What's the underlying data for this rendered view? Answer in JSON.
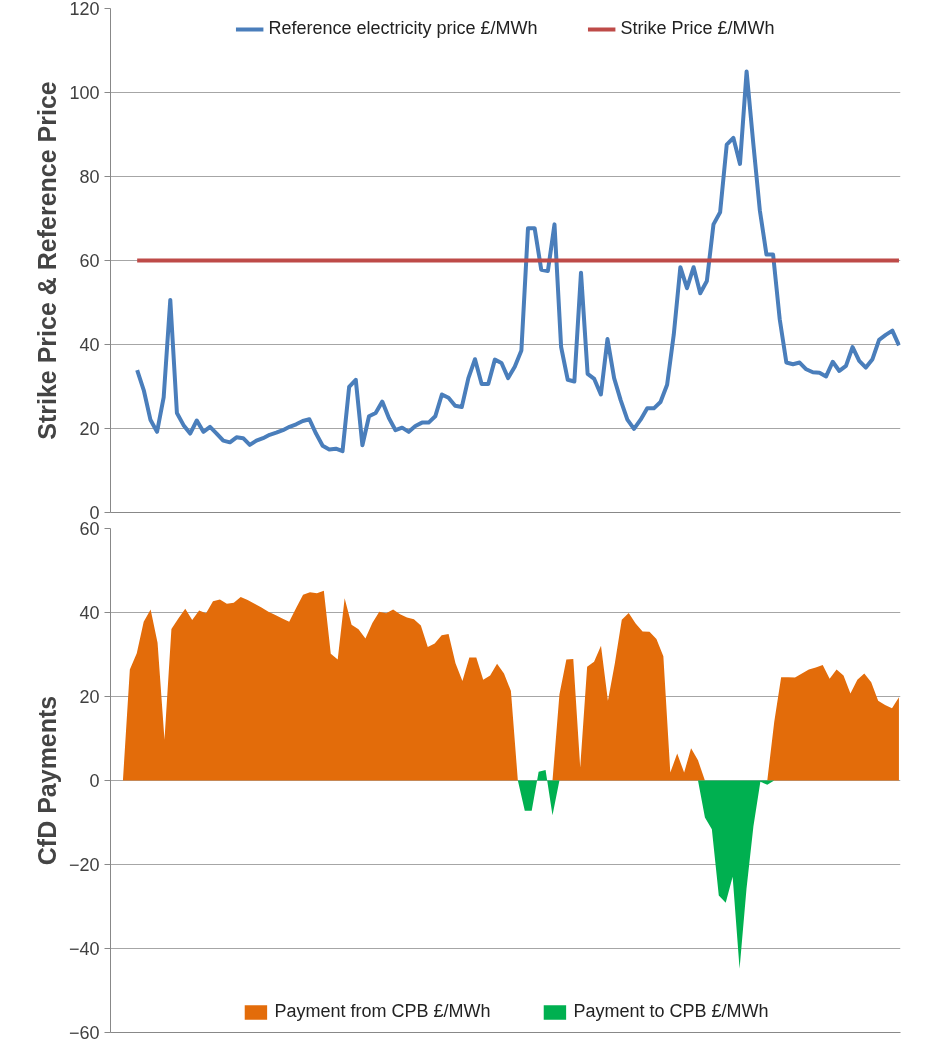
{
  "chart_data": [
    {
      "type": "line",
      "ylabel": "Strike Price & Reference Price",
      "ylim": [
        0,
        120
      ],
      "yticks": [
        0,
        20,
        40,
        60,
        80,
        100,
        120
      ],
      "grid": "y",
      "legend": "top",
      "tick_labels": "y",
      "marker": "none",
      "line_style": "solid",
      "categories": [
        null,
        null,
        null,
        null,
        null,
        null,
        null,
        null,
        null,
        null,
        null,
        null,
        null,
        null,
        null,
        null,
        null,
        null,
        null,
        null,
        null,
        null,
        null,
        null,
        null,
        null,
        null,
        null,
        null,
        null,
        null,
        null,
        null,
        null,
        null,
        null,
        null,
        null,
        null,
        null,
        null,
        null,
        null,
        null,
        null,
        null,
        null,
        null,
        null,
        null,
        null,
        null,
        null,
        null,
        null,
        null,
        null,
        null,
        null,
        null,
        null,
        null,
        null,
        null,
        null,
        null,
        null,
        null,
        null,
        null,
        null,
        null,
        null,
        null,
        null,
        null,
        null,
        null,
        null,
        null,
        null,
        null,
        null,
        null,
        null,
        null,
        null,
        null,
        null,
        null,
        null,
        null,
        null,
        null,
        null,
        null,
        null,
        null,
        null,
        null,
        null,
        null,
        null,
        null,
        null,
        null,
        null,
        null,
        null,
        null,
        null,
        null,
        null,
        null,
        null,
        null
      ],
      "series": [
        {
          "name": "Reference electricity price £/MWh",
          "color": "#4a7ebb",
          "values": [
            33.9,
            29.1,
            22.1,
            19.2,
            27.4,
            50.6,
            23.7,
            20.8,
            18.8,
            21.9,
            19.2,
            20.4,
            18.8,
            17.1,
            16.7,
            17.9,
            17.7,
            16.1,
            17.1,
            17.7,
            18.5,
            19.0,
            19.6,
            20.4,
            21.0,
            21.8,
            22.2,
            18.8,
            15.9,
            15.0,
            15.2,
            14.6,
            29.9,
            31.6,
            16.0,
            22.9,
            23.7,
            26.4,
            22.5,
            19.6,
            20.2,
            19.2,
            20.6,
            21.4,
            21.4,
            22.9,
            28.1,
            27.3,
            25.4,
            25.1,
            32.0,
            36.5,
            30.6,
            30.6,
            36.4,
            35.6,
            32.0,
            34.7,
            38.6,
            67.7,
            67.7,
            57.8,
            57.5,
            68.6,
            39.4,
            31.6,
            31.2,
            57.1,
            33.0,
            31.8,
            28.1,
            41.3,
            32.0,
            26.7,
            22.1,
            19.9,
            22.1,
            24.8,
            24.8,
            26.3,
            30.4,
            42.3,
            58.4,
            53.4,
            58.4,
            52.2,
            55.1,
            68.6,
            71.5,
            87.6,
            89.2,
            83.0,
            105,
            88.0,
            71.9,
            61.4,
            61.4,
            46.0,
            35.7,
            35.3,
            35.7,
            34.1,
            33.4,
            33.3,
            32.4,
            35.9,
            33.7,
            34.9,
            39.4,
            36.1,
            34.5,
            36.5,
            41.1,
            42.3,
            43.3,
            39.8
          ]
        },
        {
          "name": "Strike Price £/MWh",
          "color": "#be4b48",
          "values": [
            60,
            60,
            60,
            60,
            60,
            60,
            60,
            60,
            60,
            60,
            60,
            60,
            60,
            60,
            60,
            60,
            60,
            60,
            60,
            60,
            60,
            60,
            60,
            60,
            60,
            60,
            60,
            60,
            60,
            60,
            60,
            60,
            60,
            60,
            60,
            60,
            60,
            60,
            60,
            60,
            60,
            60,
            60,
            60,
            60,
            60,
            60,
            60,
            60,
            60,
            60,
            60,
            60,
            60,
            60,
            60,
            60,
            60,
            60,
            60,
            60,
            60,
            60,
            60,
            60,
            60,
            60,
            60,
            60,
            60,
            60,
            60,
            60,
            60,
            60,
            60,
            60,
            60,
            60,
            60,
            60,
            60,
            60,
            60,
            60,
            60,
            60,
            60,
            60,
            60,
            60,
            60,
            60,
            60,
            60,
            60,
            60,
            60,
            60,
            60,
            60,
            60,
            60,
            60,
            60,
            60,
            60,
            60,
            60,
            60,
            60,
            60,
            60,
            60,
            60,
            60
          ]
        }
      ]
    },
    {
      "type": "area",
      "ylabel": "CfD Payments",
      "ylim": [
        -60,
        60
      ],
      "yticks": [
        -60,
        -40,
        -20,
        0,
        20,
        40,
        60
      ],
      "grid": "y",
      "legend": "bottom",
      "tick_labels": "y",
      "categories": [
        null,
        null,
        null,
        null,
        null,
        null,
        null,
        null,
        null,
        null,
        null,
        null,
        null,
        null,
        null,
        null,
        null,
        null,
        null,
        null,
        null,
        null,
        null,
        null,
        null,
        null,
        null,
        null,
        null,
        null,
        null,
        null,
        null,
        null,
        null,
        null,
        null,
        null,
        null,
        null,
        null,
        null,
        null,
        null,
        null,
        null,
        null,
        null,
        null,
        null,
        null,
        null,
        null,
        null,
        null,
        null,
        null,
        null,
        null,
        null,
        null,
        null,
        null,
        null,
        null,
        null,
        null,
        null,
        null,
        null,
        null,
        null,
        null,
        null,
        null,
        null,
        null,
        null,
        null,
        null,
        null,
        null,
        null,
        null,
        null,
        null,
        null,
        null,
        null,
        null,
        null,
        null,
        null,
        null,
        null,
        null,
        null,
        null,
        null,
        null,
        null,
        null,
        null,
        null,
        null,
        null,
        null,
        null,
        null,
        null,
        null,
        null,
        null
      ],
      "series": [
        {
          "name": "Payment from CPB £/MWh",
          "color": "#e36c0a",
          "values": [
            0,
            26.4,
            30.3,
            37.8,
            40.7,
            32.8,
            9.7,
            36.1,
            38.6,
            40.9,
            38.2,
            40.5,
            39.8,
            42.7,
            43.1,
            42.1,
            42.3,
            43.7,
            43.0,
            42.1,
            41.2,
            40.2,
            39.4,
            38.6,
            37.8,
            41.1,
            44.2,
            44.8,
            44.6,
            45.2,
            30.2,
            28.8,
            43.4,
            37.1,
            36.0,
            33.8,
            37.5,
            40.2,
            39.8,
            40.7,
            39.6,
            38.8,
            38.4,
            36.9,
            31.8,
            32.6,
            34.6,
            34.9,
            27.9,
            23.7,
            29.3,
            29.3,
            24.0,
            25.0,
            27.8,
            25.5,
            21.3,
            0,
            0,
            0,
            0,
            0,
            0,
            20.5,
            28.8,
            28.9,
            3.1,
            27.1,
            28.3,
            32.1,
            19.0,
            27.9,
            38.3,
            39.9,
            37.4,
            35.5,
            35.4,
            33.7,
            29.6,
            1.9,
            6.4,
            1.9,
            7.7,
            4.8,
            0,
            0,
            0,
            0,
            0,
            0,
            0,
            0,
            0,
            0,
            13.9,
            24.6,
            24.6,
            24.5,
            25.5,
            26.4,
            26.9,
            27.5,
            24.2,
            26.4,
            25.0,
            20.7,
            24.0,
            25.5,
            23.4,
            19.0,
            18.0,
            17.2,
            19.8
          ]
        },
        {
          "name": "Payment to CPB £/MWh",
          "color": "#00b050",
          "values": [
            0,
            0,
            0,
            0,
            0,
            0,
            0,
            0,
            0,
            0,
            0,
            0,
            0,
            0,
            0,
            0,
            0,
            0,
            0,
            0,
            0,
            0,
            0,
            0,
            0,
            0,
            0,
            0,
            0,
            0,
            0,
            0,
            0,
            0,
            0,
            0,
            0,
            0,
            0,
            0,
            0,
            0,
            0,
            0,
            0,
            0,
            0,
            0,
            0,
            0,
            0,
            0,
            0,
            0,
            0,
            0,
            0,
            0,
            -7.2,
            -7.2,
            2.1,
            2.5,
            -8.3,
            0,
            0,
            0,
            0,
            0,
            0,
            0,
            0,
            0,
            0,
            0,
            0,
            0,
            0,
            0,
            0,
            0,
            0,
            0,
            0,
            0,
            -8.8,
            -11.6,
            -27.4,
            -29.1,
            -22.9,
            -44.8,
            -25.8,
            -10.9,
            -0.3,
            -1.0,
            0,
            0,
            0,
            0,
            0,
            0,
            0,
            0,
            0,
            0,
            0,
            0,
            0,
            0,
            0,
            0,
            0,
            0,
            0
          ]
        }
      ]
    }
  ]
}
